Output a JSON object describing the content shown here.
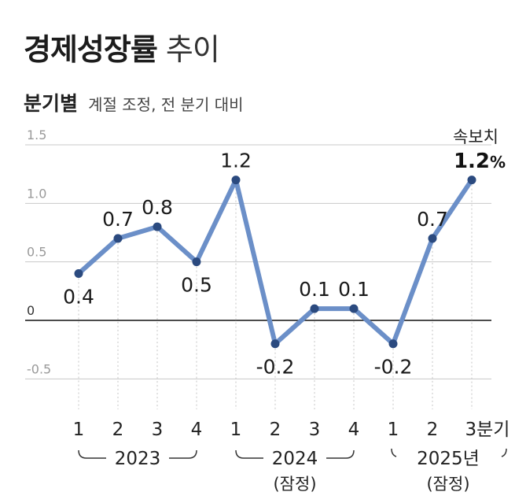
{
  "header": {
    "title_bold": "경제성장률",
    "title_light": "추이",
    "subtitle_bold": "분기별",
    "subtitle_note": "계절 조정, 전 분기 대비"
  },
  "colors": {
    "line": "#6b8fc8",
    "point": "#2b4a7f",
    "grid": "#c8c8c8",
    "axis": "#111111",
    "tick_text": "#9a9a9a"
  },
  "chart_data": {
    "type": "line",
    "y_ticks": [
      "1.5",
      "1.0",
      "0.5",
      "0",
      "-0.5"
    ],
    "ylim": [
      -0.5,
      1.5
    ],
    "categories": [
      "1",
      "2",
      "3",
      "4",
      "1",
      "2",
      "3",
      "4",
      "1",
      "2",
      "3분기"
    ],
    "values": [
      0.4,
      0.7,
      0.8,
      0.5,
      1.2,
      -0.2,
      0.1,
      0.1,
      -0.2,
      0.7,
      1.2
    ],
    "point_labels": [
      "0.4",
      "0.7",
      "0.8",
      "0.5",
      "1.2",
      "-0.2",
      "0.1",
      "0.1",
      "-0.2",
      "0.7",
      "1.2%"
    ],
    "year_groups": [
      {
        "label": "2023",
        "note": ""
      },
      {
        "label": "2024",
        "note": "(잠정)"
      },
      {
        "label": "2025년",
        "note": "(잠정)"
      }
    ],
    "annotation": "속보치"
  }
}
